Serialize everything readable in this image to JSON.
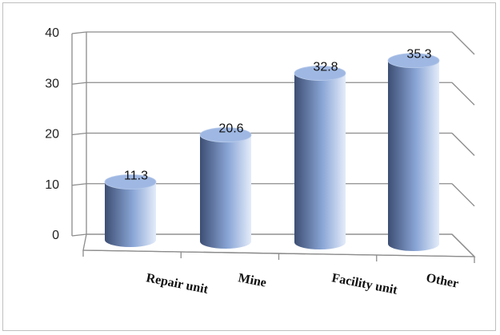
{
  "chart_data": {
    "type": "bar",
    "style": "3d-cylinder",
    "categories": [
      "Repair unit",
      "Mine",
      "Facility unit",
      "Other"
    ],
    "values": [
      11.3,
      20.6,
      32.8,
      35.3
    ],
    "data_labels": [
      "11.3",
      "20.6",
      "32.8",
      "35.3"
    ],
    "yticks": [
      "0",
      "10",
      "20",
      "30",
      "40"
    ],
    "ylim": [
      0,
      40
    ],
    "grid": true,
    "legend": "none",
    "colors": {
      "bar_dark": "#3d4e73",
      "bar_mid": "#8aa6d6",
      "bar_light": "#e4ecfa",
      "bar_top": "#9fb8e3",
      "gridline": "#8c8c8c"
    }
  }
}
